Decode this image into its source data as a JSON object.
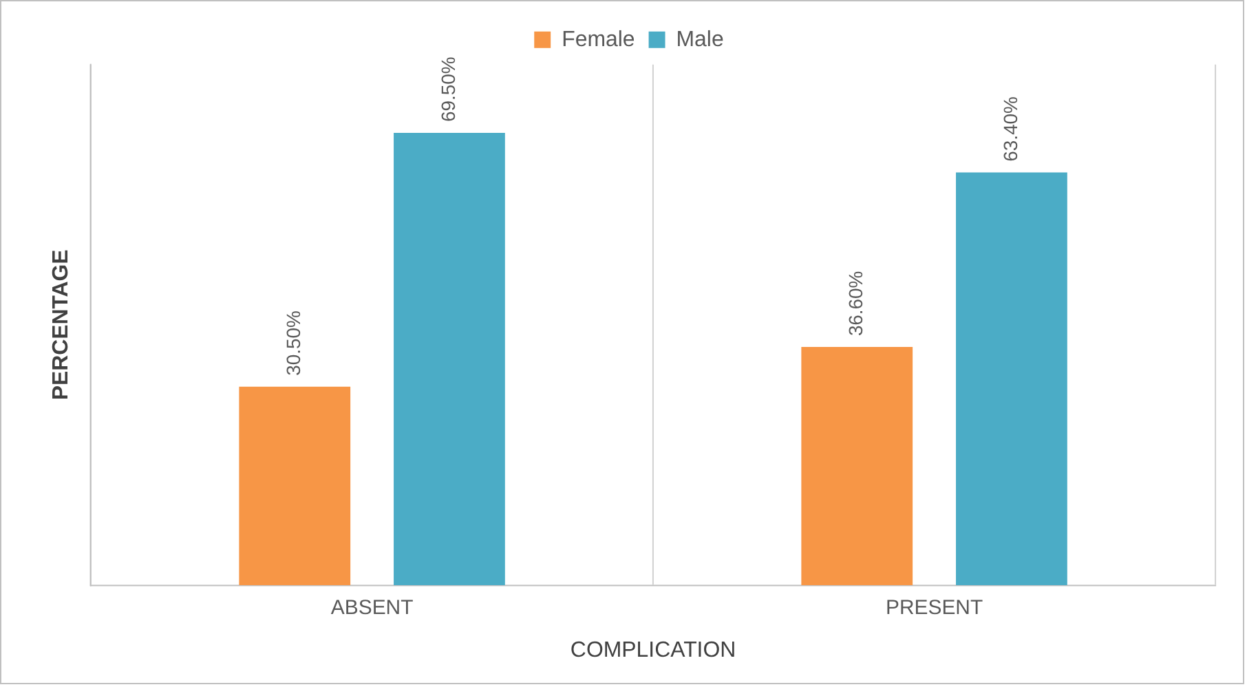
{
  "chart_data": {
    "type": "bar",
    "xlabel": "COMPLICATION",
    "ylabel": "PERCENTAGE",
    "categories": [
      "ABSENT",
      "PRESENT"
    ],
    "series": [
      {
        "name": "Female",
        "color": "#f79646",
        "values": [
          30.5,
          36.6
        ],
        "value_labels": [
          "30.50%",
          "36.60%"
        ]
      },
      {
        "name": "Male",
        "color": "#4bacc6",
        "values": [
          69.5,
          63.4
        ],
        "value_labels": [
          "69.50%",
          "63.40%"
        ]
      }
    ],
    "legend": "top",
    "grid": "x"
  }
}
